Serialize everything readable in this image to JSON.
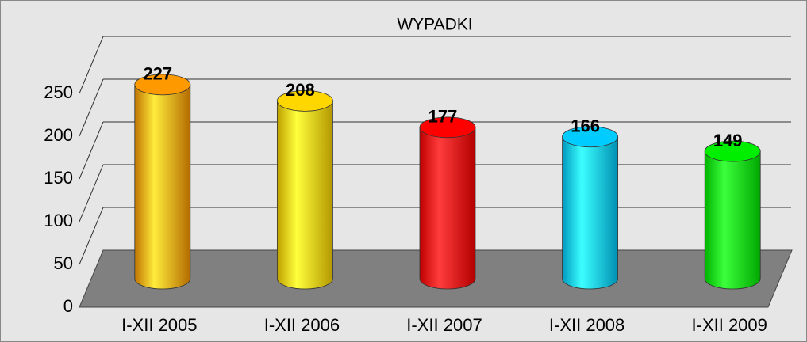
{
  "chart_data": {
    "type": "bar",
    "title": "WYPADKI",
    "categories": [
      "I-XII 2005",
      "I-XII 2006",
      "I-XII 2007",
      "I-XII 2008",
      "I-XII 2009"
    ],
    "values": [
      227,
      208,
      177,
      166,
      149
    ],
    "colors": [
      "#ff9900",
      "#ffd700",
      "#ff0000",
      "#00ccff",
      "#00ee00"
    ],
    "ylim": [
      0,
      250
    ],
    "yticks": [
      0,
      50,
      100,
      150,
      200,
      250
    ],
    "grid": true
  }
}
